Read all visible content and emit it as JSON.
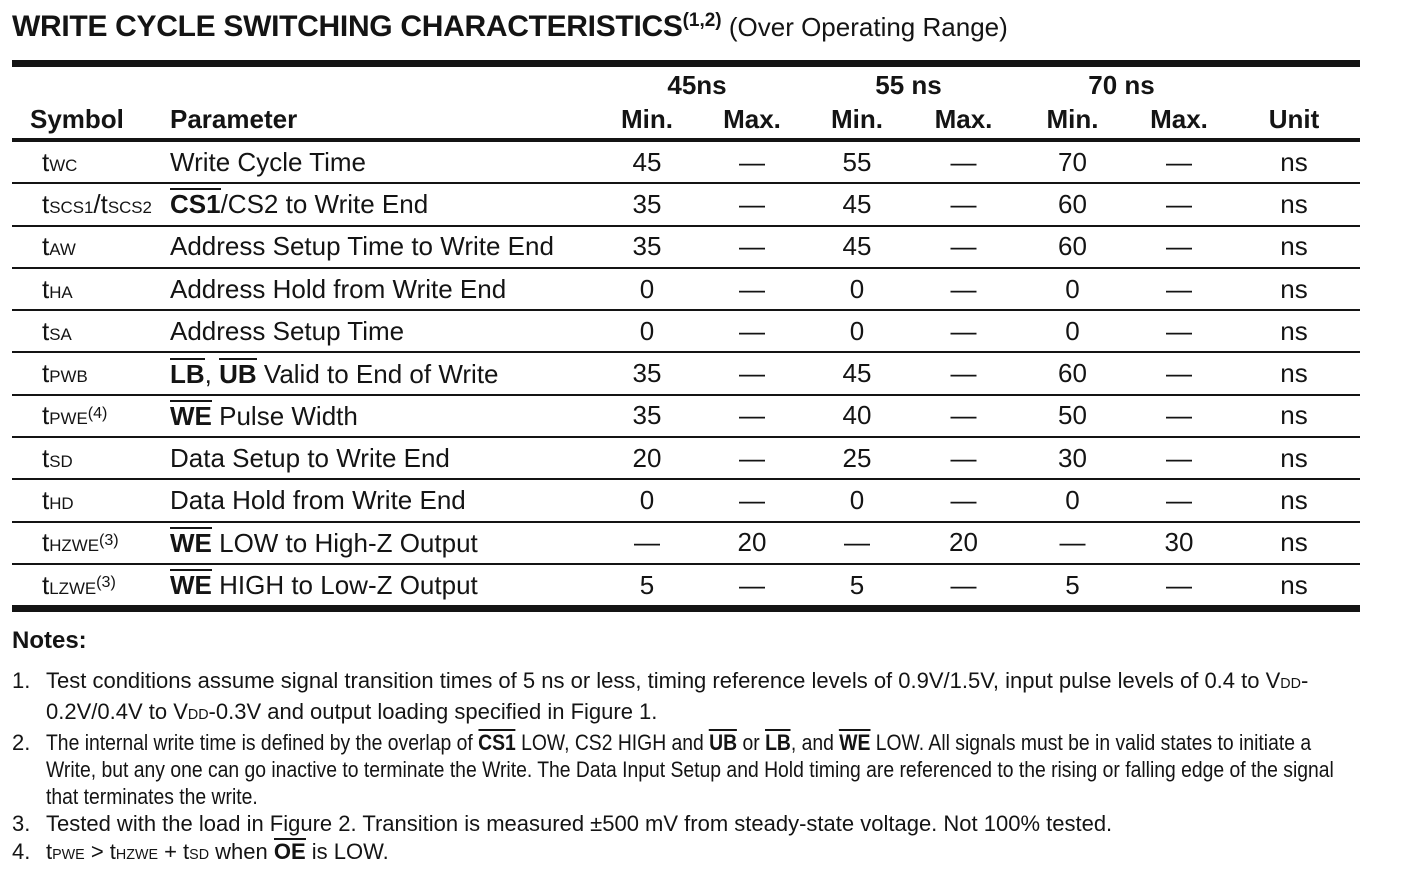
{
  "title": {
    "main": "WRITE CYCLE SWITCHING CHARACTERISTICS",
    "superscript": "(1,2)",
    "suffix": " (Over Operating Range)"
  },
  "table": {
    "headers": {
      "symbol": "Symbol",
      "parameter": "Parameter",
      "min": "Min.",
      "max": "Max.",
      "unit": "Unit",
      "speed_grades": [
        "45ns",
        "55 ns",
        "70 ns"
      ]
    },
    "rows": [
      {
        "symbol": [
          [
            "t"
          ],
          [
            "WC",
            "sub"
          ]
        ],
        "parameter": [
          [
            "Write Cycle Time"
          ]
        ],
        "values": [
          "45",
          "—",
          "55",
          "—",
          "70",
          "—"
        ],
        "unit": "ns"
      },
      {
        "symbol": [
          [
            "t"
          ],
          [
            "SCS1",
            "sub"
          ],
          [
            "/t"
          ],
          [
            "SCS2",
            "sub"
          ]
        ],
        "parameter": [
          [
            "CS1",
            "over"
          ],
          [
            "/CS2 to Write End"
          ]
        ],
        "values": [
          "35",
          "—",
          "45",
          "—",
          "60",
          "—"
        ],
        "unit": "ns"
      },
      {
        "symbol": [
          [
            "t"
          ],
          [
            "AW",
            "sub"
          ]
        ],
        "parameter": [
          [
            "Address Setup Time to Write End"
          ]
        ],
        "values": [
          "35",
          "—",
          "45",
          "—",
          "60",
          "—"
        ],
        "unit": "ns"
      },
      {
        "symbol": [
          [
            "t"
          ],
          [
            "HA",
            "sub"
          ]
        ],
        "parameter": [
          [
            "Address Hold from Write End"
          ]
        ],
        "values": [
          "0",
          "—",
          "0",
          "—",
          "0",
          "—"
        ],
        "unit": "ns"
      },
      {
        "symbol": [
          [
            "t"
          ],
          [
            "SA",
            "sub"
          ]
        ],
        "parameter": [
          [
            "Address Setup Time"
          ]
        ],
        "values": [
          "0",
          "—",
          "0",
          "—",
          "0",
          "—"
        ],
        "unit": "ns"
      },
      {
        "symbol": [
          [
            "t"
          ],
          [
            "PWB",
            "sub"
          ]
        ],
        "parameter": [
          [
            "LB",
            "over"
          ],
          [
            ", "
          ],
          [
            "UB",
            "over"
          ],
          [
            " Valid to End of Write"
          ]
        ],
        "values": [
          "35",
          "—",
          "45",
          "—",
          "60",
          "—"
        ],
        "unit": "ns"
      },
      {
        "symbol": [
          [
            "t"
          ],
          [
            "PWE",
            "sub"
          ],
          [
            "(4)",
            "sup"
          ]
        ],
        "parameter": [
          [
            "WE",
            "over"
          ],
          [
            " Pulse Width"
          ]
        ],
        "values": [
          "35",
          "—",
          "40",
          "—",
          "50",
          "—"
        ],
        "unit": "ns"
      },
      {
        "symbol": [
          [
            "t"
          ],
          [
            "SD",
            "sub"
          ]
        ],
        "parameter": [
          [
            "Data Setup to Write End"
          ]
        ],
        "values": [
          "20",
          "—",
          "25",
          "—",
          "30",
          "—"
        ],
        "unit": "ns"
      },
      {
        "symbol": [
          [
            "t"
          ],
          [
            "HD",
            "sub"
          ]
        ],
        "parameter": [
          [
            "Data Hold from Write End"
          ]
        ],
        "values": [
          "0",
          "—",
          "0",
          "—",
          "0",
          "—"
        ],
        "unit": "ns"
      },
      {
        "symbol": [
          [
            "t"
          ],
          [
            "HZWE",
            "sub"
          ],
          [
            "(3)",
            "sup"
          ]
        ],
        "parameter": [
          [
            "WE",
            "over"
          ],
          [
            " LOW to High-Z Output"
          ]
        ],
        "values": [
          "—",
          "20",
          "—",
          "20",
          "—",
          "30"
        ],
        "unit": "ns"
      },
      {
        "symbol": [
          [
            "t"
          ],
          [
            "LZWE",
            "sub"
          ],
          [
            "(3)",
            "sup"
          ]
        ],
        "parameter": [
          [
            "WE",
            "over"
          ],
          [
            " HIGH to Low-Z Output"
          ]
        ],
        "values": [
          "5",
          "—",
          "5",
          "—",
          "5",
          "—"
        ],
        "unit": "ns"
      }
    ]
  },
  "notes": {
    "heading": "Notes:",
    "items": [
      {
        "number": "1.",
        "condensed": false,
        "segments": [
          [
            "Test conditions assume signal transition times of 5 ns or less, timing reference levels of 0.9V/1.5V, input pulse levels of 0.4 to V"
          ],
          [
            "DD",
            "sub"
          ],
          [
            "-0.2V/0.4V to V"
          ],
          [
            "DD",
            "sub"
          ],
          [
            "-0.3V and output loading specified in Figure 1."
          ]
        ]
      },
      {
        "number": "2.",
        "condensed": true,
        "segments": [
          [
            "The internal write time is defined by the overlap of "
          ],
          [
            "CS1",
            "over"
          ],
          [
            " LOW, CS2 HIGH and "
          ],
          [
            "UB",
            "over"
          ],
          [
            " or "
          ],
          [
            "LB",
            "over"
          ],
          [
            ", and "
          ],
          [
            "WE",
            "over"
          ],
          [
            " LOW. All signals must be in valid states to initiate a Write, but any one can go inactive to terminate the Write. The Data Input Setup and Hold timing are referenced to the rising or falling edge of the signal that terminates the write."
          ]
        ]
      },
      {
        "number": "3.",
        "condensed": false,
        "segments": [
          [
            "Tested with the load in Figure 2. Transition is measured ±500 mV from steady-state voltage. Not 100% tested."
          ]
        ]
      },
      {
        "number": "4.",
        "condensed": false,
        "segments": [
          [
            "t"
          ],
          [
            "PWE",
            "sub"
          ],
          [
            " > t"
          ],
          [
            "HZWE",
            "sub"
          ],
          [
            " + t"
          ],
          [
            "SD",
            "sub"
          ],
          [
            " when "
          ],
          [
            "OE",
            "over"
          ],
          [
            " is LOW."
          ]
        ]
      }
    ]
  },
  "colors": {
    "text": "#141414",
    "rule": "#141414",
    "background": "#ffffff"
  }
}
